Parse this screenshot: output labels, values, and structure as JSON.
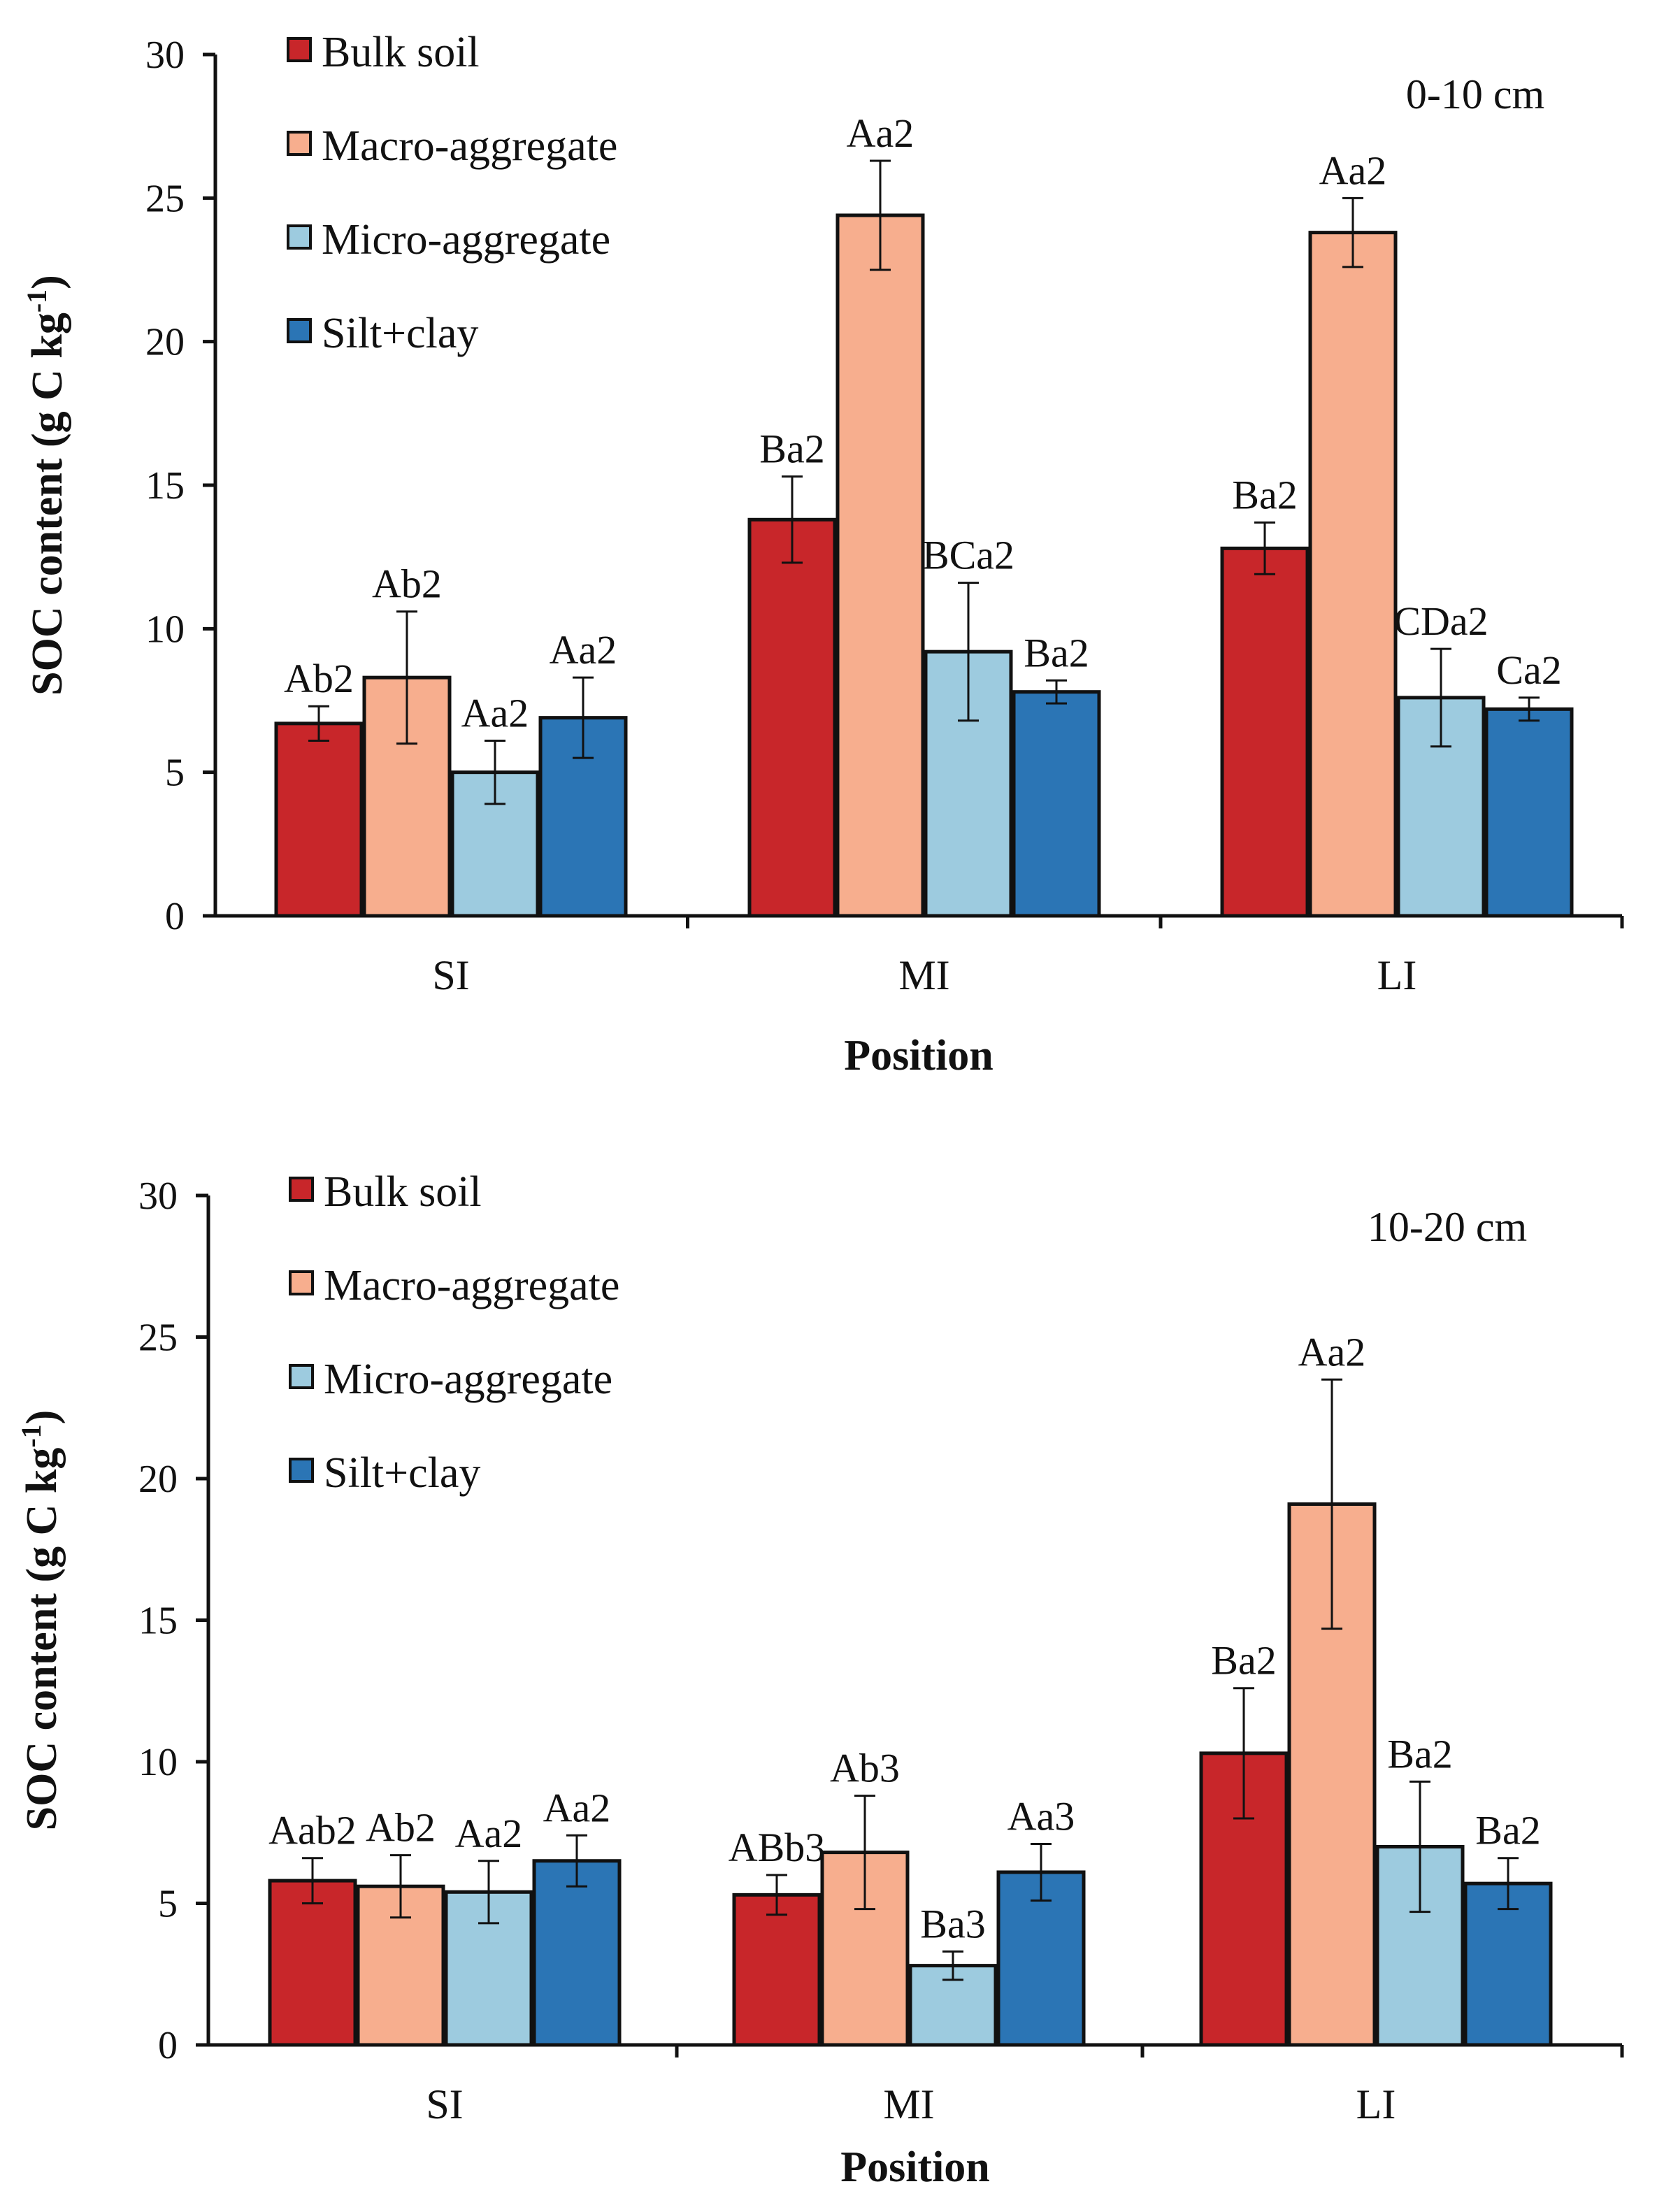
{
  "chart_data": [
    {
      "type": "bar",
      "panel": "top",
      "depth_label": "0-10 cm",
      "categories": [
        "SI",
        "MI",
        "LI"
      ],
      "xlabel": "Position",
      "ylabel_main": "SOC content (g C kg",
      "ylabel_sup": "-1",
      "ylabel_close": ")",
      "ylim": [
        0,
        30
      ],
      "yticks": [
        "0",
        "5",
        "10",
        "15",
        "20",
        "25",
        "30"
      ],
      "legend_position": "top-left",
      "series": [
        {
          "name": "Bulk soil",
          "color": "#c8262a",
          "values": [
            6.7,
            13.8,
            12.8
          ],
          "errors": [
            0.6,
            1.5,
            0.9
          ],
          "labels": [
            "Ab2",
            "Ba2",
            "Ba2"
          ]
        },
        {
          "name": "Macro-aggregate",
          "color": "#f7ae8e",
          "values": [
            8.3,
            24.4,
            23.8
          ],
          "errors": [
            2.3,
            1.9,
            1.2
          ],
          "labels": [
            "Ab2",
            "Aa2",
            "Aa2"
          ]
        },
        {
          "name": "Micro-aggregate",
          "color": "#9dcbdf",
          "values": [
            5.0,
            9.2,
            7.6
          ],
          "errors": [
            1.1,
            2.4,
            1.7
          ],
          "labels": [
            "Aa2",
            "BCa2",
            "CDa2"
          ]
        },
        {
          "name": "Silt+clay",
          "color": "#2b75b5",
          "values": [
            6.9,
            7.8,
            7.2
          ],
          "errors": [
            1.4,
            0.4,
            0.4
          ],
          "labels": [
            "Aa2",
            "Ba2",
            "Ca2"
          ]
        }
      ]
    },
    {
      "type": "bar",
      "panel": "bottom",
      "depth_label": "10-20 cm",
      "categories": [
        "SI",
        "MI",
        "LI"
      ],
      "xlabel": "Position",
      "ylabel_main": "SOC content (g C kg",
      "ylabel_sup": "-1",
      "ylabel_close": ")",
      "ylim": [
        0,
        30
      ],
      "yticks": [
        "0",
        "5",
        "10",
        "15",
        "20",
        "25",
        "30"
      ],
      "legend_position": "top-left",
      "series": [
        {
          "name": "Bulk soil",
          "color": "#c8262a",
          "values": [
            5.8,
            5.3,
            10.3
          ],
          "errors": [
            0.8,
            0.7,
            2.3
          ],
          "labels": [
            "Aab2",
            "ABb3",
            "Ba2"
          ]
        },
        {
          "name": "Macro-aggregate",
          "color": "#f7ae8e",
          "values": [
            5.6,
            6.8,
            19.1
          ],
          "errors": [
            1.1,
            2.0,
            4.4
          ],
          "labels": [
            "Ab2",
            "Ab3",
            "Aa2"
          ]
        },
        {
          "name": "Micro-aggregate",
          "color": "#9dcbdf",
          "values": [
            5.4,
            2.8,
            7.0
          ],
          "errors": [
            1.1,
            0.5,
            2.3
          ],
          "labels": [
            "Aa2",
            "Ba3",
            "Ba2"
          ]
        },
        {
          "name": "Silt+clay",
          "color": "#2b75b5",
          "values": [
            6.5,
            6.1,
            5.7
          ],
          "errors": [
            0.9,
            1.0,
            0.9
          ],
          "labels": [
            "Aa2",
            "Aa3",
            "Ba2"
          ]
        }
      ]
    }
  ]
}
